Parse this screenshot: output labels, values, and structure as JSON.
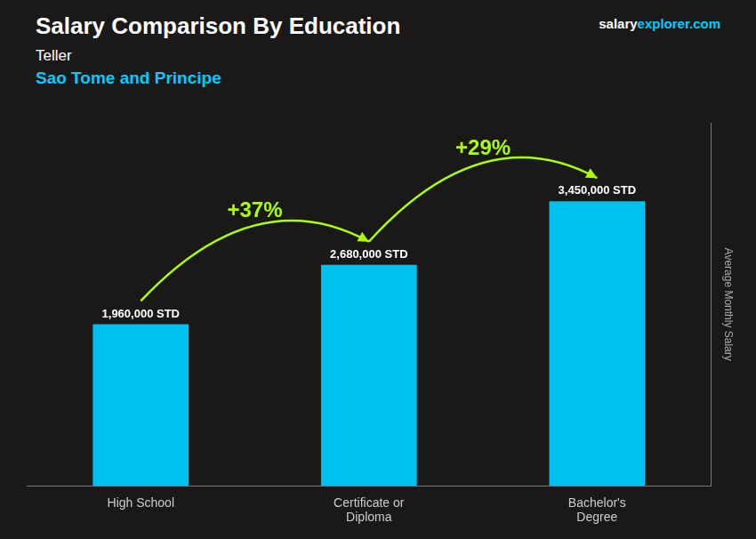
{
  "chart_data": {
    "type": "bar",
    "title": "Salary Comparison By Education",
    "subtitle": [
      {
        "text": "Teller",
        "color": "#ffffff"
      },
      {
        "text": "Sao Tome and Principe",
        "color": "#00ccff"
      }
    ],
    "source": [
      {
        "text": "salary",
        "color": "#ffffff"
      },
      {
        "text": "explorer.com",
        "color": "#00ccff"
      }
    ],
    "ylabel": "Average Monthly Salary",
    "categories": [
      "High School",
      "Certificate or\nDiploma",
      "Bachelor's\nDegree"
    ],
    "values": [
      1960000,
      2680000,
      3450000
    ],
    "value_labels": [
      "1,960,000 STD",
      "2,680,000 STD",
      "3,450,000 STD"
    ],
    "data_labels": true,
    "color": "#00c0f0",
    "ylim": [
      0,
      4400000
    ],
    "grid": false,
    "tick_labels": "x",
    "annotations": [
      {
        "text": "+37%",
        "color": "#aaff00"
      },
      {
        "text": "+29%",
        "color": "#aaff00"
      }
    ]
  }
}
